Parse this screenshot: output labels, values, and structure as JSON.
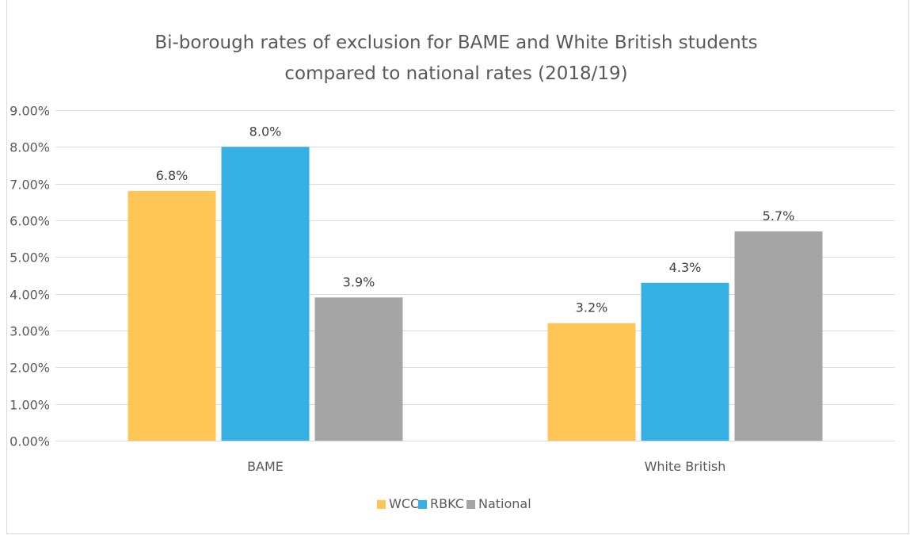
{
  "chart_data": {
    "type": "bar",
    "title": "Bi-borough rates of exclusion for BAME and White British students compared to national rates (2018/19)",
    "title_lines": [
      "Bi-borough rates of exclusion for BAME and White British students",
      "compared to national rates (2018/19)"
    ],
    "xlabel": "",
    "ylabel": "",
    "categories": [
      "BAME",
      "White British"
    ],
    "series": [
      {
        "name": "WCC",
        "color": "#FFC655",
        "values": [
          6.8,
          3.2
        ],
        "labels": [
          "6.8%",
          "3.2%"
        ]
      },
      {
        "name": "RBKC",
        "color": "#35B0E3",
        "values": [
          8.0,
          4.3
        ],
        "labels": [
          "8.0%",
          "4.3%"
        ]
      },
      {
        "name": "National",
        "color": "#A5A5A5",
        "values": [
          3.9,
          5.7
        ],
        "labels": [
          "3.9%",
          "5.7%"
        ]
      }
    ],
    "ylim": [
      0,
      9
    ],
    "y_ticks": [
      0,
      1,
      2,
      3,
      4,
      5,
      6,
      7,
      8,
      9
    ],
    "y_tick_labels": [
      "0.00%",
      "1.00%",
      "2.00%",
      "3.00%",
      "4.00%",
      "5.00%",
      "6.00%",
      "7.00%",
      "8.00%",
      "9.00%"
    ],
    "grid": true,
    "legend_position": "bottom",
    "gridline_color": "#d9d9d9"
  }
}
